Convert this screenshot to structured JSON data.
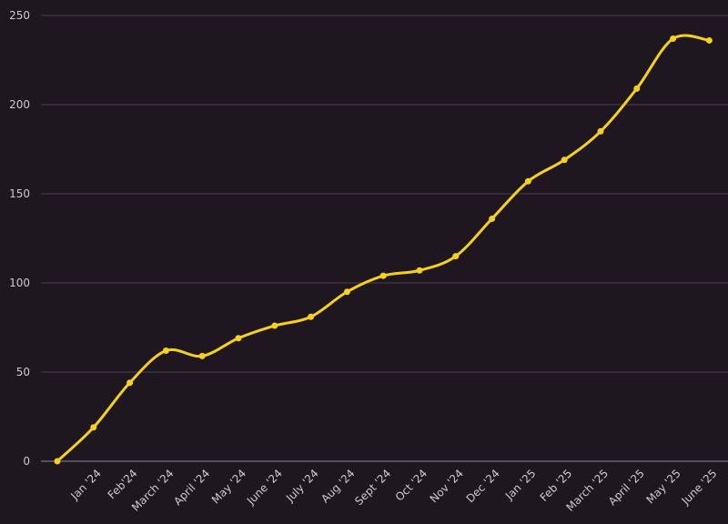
{
  "chart_data": {
    "type": "line",
    "title": "",
    "xlabel": "",
    "ylabel": "",
    "categories": [
      "",
      "Jan '24",
      "Feb'24",
      "March '24",
      "April '24",
      "May '24",
      "June '24",
      "July '24",
      "Aug '24",
      "Sept '24",
      "Oct '24",
      "Nov '24",
      "Dec '24",
      "Jan '25",
      "Feb '25",
      "March '25",
      "April '25",
      "May '25",
      "June '25"
    ],
    "series": [
      {
        "values": [
          0,
          19,
          44,
          62,
          59,
          69,
          76,
          81,
          95,
          104,
          107,
          115,
          136,
          157,
          169,
          185,
          209,
          237,
          236
        ]
      }
    ],
    "ylim": [
      0,
      250
    ],
    "yticks": [
      0,
      50,
      100,
      150,
      200,
      250
    ],
    "grid": "horizontal",
    "legend": "none",
    "colors": {
      "background": "#1e171f",
      "line": "#f7cf1d",
      "grid": "#4a3f4c",
      "text": "#cfc8d1"
    }
  }
}
